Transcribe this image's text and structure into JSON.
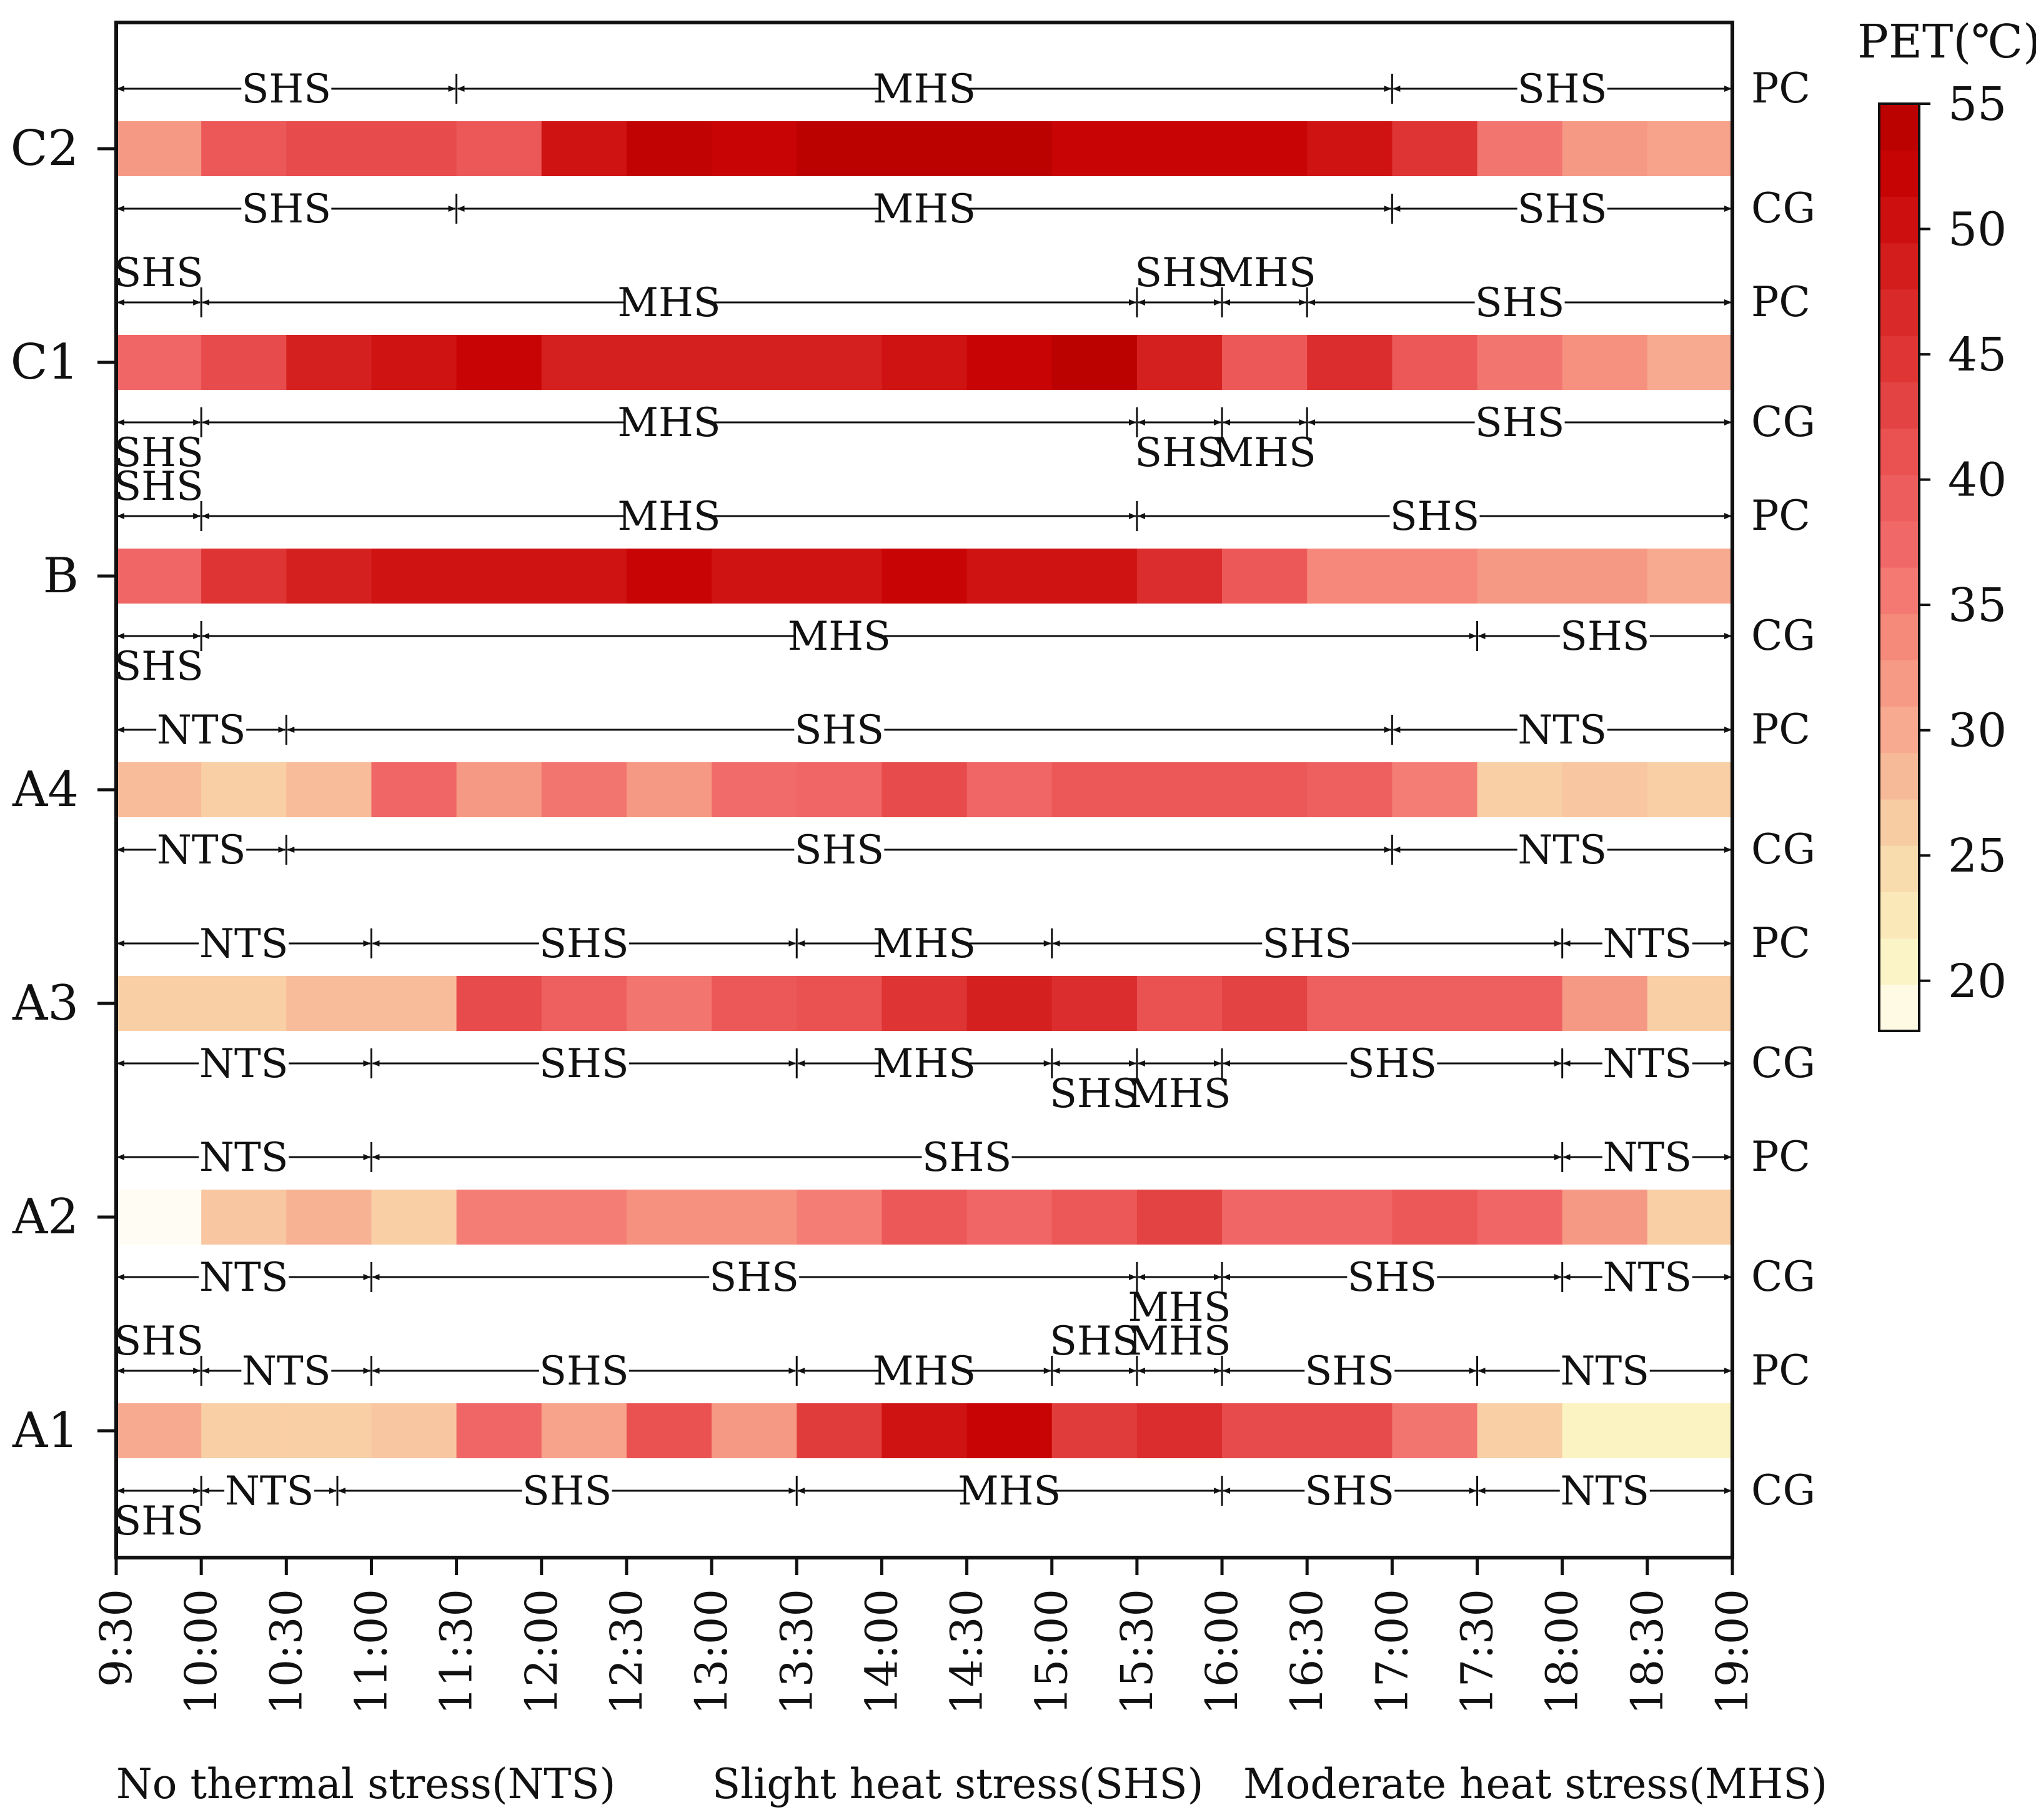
{
  "chart_data": {
    "type": "heatmap",
    "title": "",
    "colorbar": {
      "label": "PET(℃)",
      "range": [
        18,
        55
      ],
      "ticks": [
        "20",
        "25",
        "30",
        "35",
        "40",
        "45",
        "50",
        "55"
      ],
      "stops": [
        {
          "v": 18,
          "color": "#fffdf3"
        },
        {
          "v": 21,
          "color": "#fbf3c2"
        },
        {
          "v": 25,
          "color": "#f9d9ab"
        },
        {
          "v": 29,
          "color": "#f7b294"
        },
        {
          "v": 33,
          "color": "#f6917f"
        },
        {
          "v": 37,
          "color": "#f26b6b"
        },
        {
          "v": 41,
          "color": "#ea5252"
        },
        {
          "v": 45,
          "color": "#de3434"
        },
        {
          "v": 49,
          "color": "#d21919"
        },
        {
          "v": 52,
          "color": "#c80404"
        },
        {
          "v": 55,
          "color": "#b60000"
        }
      ]
    },
    "time_ticks": [
      "9:30",
      "10:00",
      "10:30",
      "11:00",
      "11:30",
      "12:00",
      "12:30",
      "13:00",
      "13:30",
      "14:00",
      "14:30",
      "15:00",
      "15:30",
      "16:00",
      "16:30",
      "17:00",
      "17:30",
      "18:00",
      "18:30",
      "19:00"
    ],
    "rows": [
      {
        "label": "C2",
        "pet": [
          32,
          40,
          42,
          42,
          40,
          50,
          53,
          52,
          54,
          54,
          54,
          52,
          52,
          52,
          50,
          45,
          36,
          32,
          31
        ]
      },
      {
        "label": "C1",
        "pet": [
          38,
          42,
          48,
          50,
          52,
          48,
          48,
          48,
          48,
          50,
          52,
          54,
          48,
          40,
          46,
          40,
          36,
          33,
          30
        ]
      },
      {
        "label": "B",
        "pet": [
          38,
          45,
          48,
          50,
          50,
          50,
          52,
          50,
          50,
          52,
          50,
          50,
          46,
          40,
          34,
          34,
          32,
          32,
          30
        ]
      },
      {
        "label": "A4",
        "pet": [
          28,
          26,
          28,
          38,
          32,
          36,
          32,
          37,
          38,
          42,
          38,
          40,
          40,
          40,
          39,
          35,
          26,
          27,
          26
        ]
      },
      {
        "label": "A3",
        "pet": [
          26,
          26,
          28,
          28,
          42,
          39,
          36,
          40,
          41,
          45,
          48,
          46,
          41,
          43,
          39,
          39,
          39,
          32,
          26
        ]
      },
      {
        "label": "A2",
        "pet": [
          18,
          27,
          29,
          26,
          35,
          35,
          33,
          33,
          35,
          40,
          38,
          40,
          43,
          38,
          38,
          40,
          38,
          32,
          26
        ]
      },
      {
        "label": "A1",
        "pet": [
          30,
          26,
          26,
          27,
          38,
          31,
          41,
          32,
          44,
          50,
          52,
          44,
          46,
          42,
          42,
          36,
          26,
          21,
          21
        ]
      }
    ],
    "stress_lines": [
      {
        "row": "C2",
        "line": "PC",
        "pos": "above",
        "segments": [
          {
            "from": 0,
            "to": 4,
            "label": "SHS"
          },
          {
            "from": 4,
            "to": 15,
            "label": "MHS"
          },
          {
            "from": 15,
            "to": 19,
            "label": "SHS"
          }
        ]
      },
      {
        "row": "C2",
        "line": "CG",
        "pos": "below",
        "segments": [
          {
            "from": 0,
            "to": 4,
            "label": "SHS"
          },
          {
            "from": 4,
            "to": 15,
            "label": "MHS"
          },
          {
            "from": 15,
            "to": 19,
            "label": "SHS"
          }
        ]
      },
      {
        "row": "C1",
        "line": "PC",
        "pos": "above",
        "segments": [
          {
            "from": 0,
            "to": 1,
            "label": "SHS",
            "lab": "up"
          },
          {
            "from": 1,
            "to": 12,
            "label": "MHS"
          },
          {
            "from": 12,
            "to": 13,
            "label": "SHS",
            "lab": "up"
          },
          {
            "from": 13,
            "to": 14,
            "label": "MHS",
            "lab": "up"
          },
          {
            "from": 14,
            "to": 19,
            "label": "SHS"
          }
        ]
      },
      {
        "row": "C1",
        "line": "CG",
        "pos": "below",
        "segments": [
          {
            "from": 0,
            "to": 1,
            "label": "SHS",
            "lab": "down"
          },
          {
            "from": 1,
            "to": 12,
            "label": "MHS"
          },
          {
            "from": 12,
            "to": 13,
            "label": "SHS",
            "lab": "down"
          },
          {
            "from": 13,
            "to": 14,
            "label": "MHS",
            "lab": "down"
          },
          {
            "from": 14,
            "to": 19,
            "label": "SHS"
          }
        ]
      },
      {
        "row": "B",
        "line": "PC",
        "pos": "above",
        "segments": [
          {
            "from": 0,
            "to": 1,
            "label": "SHS",
            "lab": "up"
          },
          {
            "from": 1,
            "to": 12,
            "label": "MHS"
          },
          {
            "from": 12,
            "to": 19,
            "label": "SHS"
          }
        ]
      },
      {
        "row": "B",
        "line": "CG",
        "pos": "below",
        "segments": [
          {
            "from": 0,
            "to": 1,
            "label": "SHS",
            "lab": "down"
          },
          {
            "from": 1,
            "to": 16,
            "label": "MHS"
          },
          {
            "from": 16,
            "to": 19,
            "label": "SHS"
          }
        ]
      },
      {
        "row": "A4",
        "line": "PC",
        "pos": "above",
        "segments": [
          {
            "from": 0,
            "to": 2,
            "label": "NTS"
          },
          {
            "from": 2,
            "to": 15,
            "label": "SHS"
          },
          {
            "from": 15,
            "to": 19,
            "label": "NTS"
          }
        ]
      },
      {
        "row": "A4",
        "line": "CG",
        "pos": "below",
        "segments": [
          {
            "from": 0,
            "to": 2,
            "label": "NTS"
          },
          {
            "from": 2,
            "to": 15,
            "label": "SHS"
          },
          {
            "from": 15,
            "to": 19,
            "label": "NTS"
          }
        ]
      },
      {
        "row": "A3",
        "line": "PC",
        "pos": "above",
        "segments": [
          {
            "from": 0,
            "to": 3,
            "label": "NTS"
          },
          {
            "from": 3,
            "to": 8,
            "label": "SHS"
          },
          {
            "from": 8,
            "to": 11,
            "label": "MHS"
          },
          {
            "from": 11,
            "to": 17,
            "label": "SHS"
          },
          {
            "from": 17,
            "to": 19,
            "label": "NTS"
          }
        ]
      },
      {
        "row": "A3",
        "line": "CG",
        "pos": "below",
        "segments": [
          {
            "from": 0,
            "to": 3,
            "label": "NTS"
          },
          {
            "from": 3,
            "to": 8,
            "label": "SHS"
          },
          {
            "from": 8,
            "to": 11,
            "label": "MHS"
          },
          {
            "from": 11,
            "to": 12,
            "label": "SHS",
            "lab": "down"
          },
          {
            "from": 12,
            "to": 13,
            "label": "MHS",
            "lab": "down"
          },
          {
            "from": 13,
            "to": 17,
            "label": "SHS"
          },
          {
            "from": 17,
            "to": 19,
            "label": "NTS"
          }
        ]
      },
      {
        "row": "A2",
        "line": "PC",
        "pos": "above",
        "segments": [
          {
            "from": 0,
            "to": 3,
            "label": "NTS"
          },
          {
            "from": 3,
            "to": 17,
            "label": "SHS"
          },
          {
            "from": 17,
            "to": 19,
            "label": "NTS"
          }
        ]
      },
      {
        "row": "A2",
        "line": "CG",
        "pos": "below",
        "segments": [
          {
            "from": 0,
            "to": 3,
            "label": "NTS"
          },
          {
            "from": 3,
            "to": 12,
            "label": "SHS"
          },
          {
            "from": 12,
            "to": 13,
            "label": "MHS",
            "lab": "down"
          },
          {
            "from": 13,
            "to": 17,
            "label": "SHS"
          },
          {
            "from": 17,
            "to": 19,
            "label": "NTS"
          }
        ]
      },
      {
        "row": "A1",
        "line": "PC",
        "pos": "above",
        "segments": [
          {
            "from": 0,
            "to": 1,
            "label": "SHS",
            "lab": "up"
          },
          {
            "from": 1,
            "to": 3,
            "label": "NTS"
          },
          {
            "from": 3,
            "to": 8,
            "label": "SHS"
          },
          {
            "from": 8,
            "to": 11,
            "label": "MHS"
          },
          {
            "from": 11,
            "to": 12,
            "label": "SHS",
            "lab": "up"
          },
          {
            "from": 12,
            "to": 13,
            "label": "MHS",
            "lab": "up"
          },
          {
            "from": 13,
            "to": 16,
            "label": "SHS"
          },
          {
            "from": 16,
            "to": 19,
            "label": "NTS"
          }
        ]
      },
      {
        "row": "A1",
        "line": "CG",
        "pos": "below",
        "segments": [
          {
            "from": 0,
            "to": 1,
            "label": "SHS",
            "lab": "down"
          },
          {
            "from": 1,
            "to": 2.6,
            "label": "NTS"
          },
          {
            "from": 2.6,
            "to": 8,
            "label": "SHS"
          },
          {
            "from": 8,
            "to": 13,
            "label": "MHS"
          },
          {
            "from": 13,
            "to": 16,
            "label": "SHS"
          },
          {
            "from": 16,
            "to": 19,
            "label": "NTS"
          }
        ]
      }
    ],
    "legend": [
      "No thermal stress(NTS)",
      "Slight heat stress(SHS)",
      "Moderate heat stress(MHS)"
    ]
  }
}
